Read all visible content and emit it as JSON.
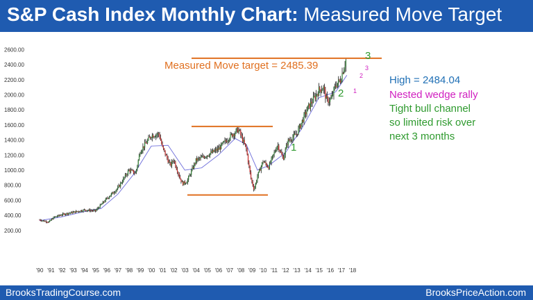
{
  "title": {
    "bold": "S&P Cash Index Monthly Chart:",
    "rest": " Measured Move Target"
  },
  "footer": {
    "left": "BrooksTradingCourse.com",
    "right": "BrooksPriceAction.com"
  },
  "colors": {
    "banner": "#1f5bb0",
    "bar": "#1a1a1a",
    "up_body": "#2e7d32",
    "down_body": "#c62828",
    "moving_average": "#7777dd",
    "target_line": "#e07020",
    "range_lines": "#e07020",
    "legs": "#2e9a2e",
    "wedge": "#d020c0",
    "high_text": "#1f6fb5"
  },
  "chart_data": {
    "type": "candlestick",
    "title": "S&P Cash Index Monthly Chart: Measured Move Target",
    "ylim": [
      100,
      2650
    ],
    "y_ticks": [
      "200.00",
      "400.00",
      "600.00",
      "800.00",
      "1000.00",
      "1200.00",
      "1400.00",
      "1600.00",
      "1800.00",
      "2000.00",
      "2200.00",
      "2400.00",
      "2600.00"
    ],
    "x_ticks": [
      "'90",
      "'91",
      "'92",
      "'93",
      "'94",
      "'95",
      "'96",
      "'97",
      "'98",
      "'99",
      "'00",
      "'01",
      "'02",
      "'03",
      "'04",
      "'05",
      "'06",
      "'07",
      "'08",
      "'09",
      "'10",
      "'11",
      "'12",
      "'13",
      "'14",
      "'15",
      "'16",
      "'17",
      "'18"
    ],
    "price_path_close": [
      {
        "t": 1990.0,
        "v": 340
      },
      {
        "t": 1990.8,
        "v": 310
      },
      {
        "t": 1991.3,
        "v": 375
      },
      {
        "t": 1992.0,
        "v": 410
      },
      {
        "t": 1993.0,
        "v": 440
      },
      {
        "t": 1994.0,
        "v": 470
      },
      {
        "t": 1995.0,
        "v": 460
      },
      {
        "t": 1996.0,
        "v": 620
      },
      {
        "t": 1997.0,
        "v": 760
      },
      {
        "t": 1998.0,
        "v": 1000
      },
      {
        "t": 1998.6,
        "v": 960
      },
      {
        "t": 1999.0,
        "v": 1250
      },
      {
        "t": 2000.0,
        "v": 1460
      },
      {
        "t": 2000.7,
        "v": 1480
      },
      {
        "t": 2001.0,
        "v": 1300
      },
      {
        "t": 2001.7,
        "v": 1060
      },
      {
        "t": 2002.0,
        "v": 1140
      },
      {
        "t": 2002.6,
        "v": 880
      },
      {
        "t": 2002.8,
        "v": 820
      },
      {
        "t": 2003.2,
        "v": 850
      },
      {
        "t": 2004.0,
        "v": 1130
      },
      {
        "t": 2005.0,
        "v": 1200
      },
      {
        "t": 2006.0,
        "v": 1280
      },
      {
        "t": 2007.0,
        "v": 1440
      },
      {
        "t": 2007.8,
        "v": 1540
      },
      {
        "t": 2008.5,
        "v": 1280
      },
      {
        "t": 2008.9,
        "v": 900
      },
      {
        "t": 2009.2,
        "v": 740
      },
      {
        "t": 2009.5,
        "v": 920
      },
      {
        "t": 2010.0,
        "v": 1120
      },
      {
        "t": 2010.5,
        "v": 1040
      },
      {
        "t": 2011.3,
        "v": 1340
      },
      {
        "t": 2011.8,
        "v": 1150
      },
      {
        "t": 2012.2,
        "v": 1380
      },
      {
        "t": 2013.0,
        "v": 1480
      },
      {
        "t": 2014.0,
        "v": 1820
      },
      {
        "t": 2015.0,
        "v": 2060
      },
      {
        "t": 2015.4,
        "v": 2100
      },
      {
        "t": 2015.7,
        "v": 1920
      },
      {
        "t": 2016.1,
        "v": 1940
      },
      {
        "t": 2016.5,
        "v": 2130
      },
      {
        "t": 2016.9,
        "v": 2190
      },
      {
        "t": 2017.45,
        "v": 2480
      }
    ],
    "price_range_per_bar": 60,
    "moving_average": [
      {
        "t": 1990.0,
        "v": 330
      },
      {
        "t": 1992.0,
        "v": 380
      },
      {
        "t": 1994.0,
        "v": 450
      },
      {
        "t": 1995.5,
        "v": 490
      },
      {
        "t": 1997.0,
        "v": 680
      },
      {
        "t": 1998.5,
        "v": 960
      },
      {
        "t": 2000.0,
        "v": 1320
      },
      {
        "t": 2001.5,
        "v": 1330
      },
      {
        "t": 2003.0,
        "v": 1000
      },
      {
        "t": 2004.5,
        "v": 1030
      },
      {
        "t": 2006.0,
        "v": 1200
      },
      {
        "t": 2007.5,
        "v": 1420
      },
      {
        "t": 2008.5,
        "v": 1340
      },
      {
        "t": 2009.5,
        "v": 1000
      },
      {
        "t": 2010.5,
        "v": 1060
      },
      {
        "t": 2012.0,
        "v": 1230
      },
      {
        "t": 2013.5,
        "v": 1560
      },
      {
        "t": 2015.0,
        "v": 1960
      },
      {
        "t": 2016.5,
        "v": 2040
      },
      {
        "t": 2017.5,
        "v": 2260
      }
    ],
    "annotations": {
      "target_text": "Measured Move target = 2485.39",
      "high_text": "High = 2484.04",
      "wedge_text": "Nested wedge rally",
      "channel_lines": [
        "Tight bull channel",
        "so limited risk over",
        "next 3 months"
      ],
      "leg1": "1",
      "leg2": "2",
      "leg3": "3",
      "wedge1": "1",
      "wedge2": "2",
      "wedge3": "3"
    },
    "target_value": 2485.39,
    "top_range_line": 1580,
    "bottom_range_line": 670
  }
}
